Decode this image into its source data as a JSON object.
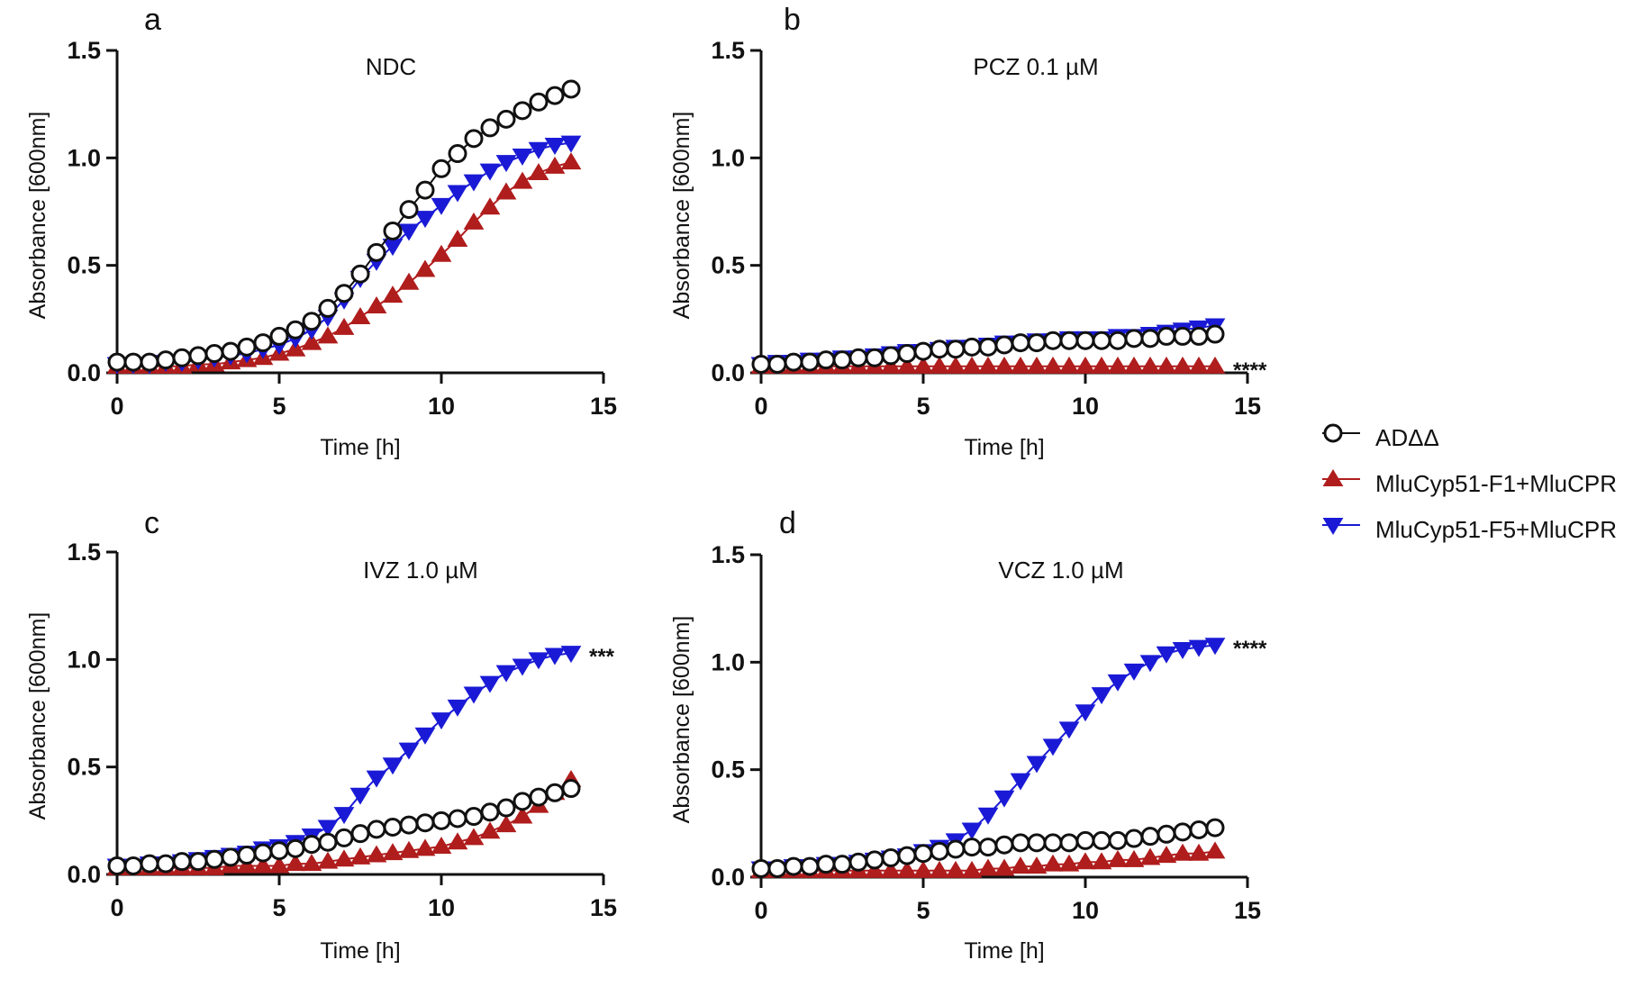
{
  "colors": {
    "addd": "#111111",
    "f1": "#b01d1d",
    "f5": "#1a1ad6",
    "axis": "#111111"
  },
  "legend": {
    "items": [
      {
        "series": "addd",
        "label": "ADΔΔ",
        "marker": "circle"
      },
      {
        "series": "f1",
        "label": "MluCyp51-F1+MluCPR",
        "marker": "triangle-up"
      },
      {
        "series": "f5",
        "label": "MluCyp51-F5+MluCPR",
        "marker": "triangle-down"
      }
    ]
  },
  "chart_data": [
    {
      "type": "line",
      "panel": "a",
      "title": "NDC",
      "xlabel": "Time [h]",
      "ylabel": "Absorbance [600nm]",
      "xlim": [
        0,
        15
      ],
      "ylim": [
        0,
        1.5
      ],
      "xticks": [
        0,
        5,
        10,
        15
      ],
      "xtick_labels": [
        "0",
        "5",
        "10",
        "15"
      ],
      "yticks": [
        0,
        0.5,
        1.0,
        1.5
      ],
      "ytick_labels": [
        "0.0",
        "0.5",
        "1.0",
        "1.5"
      ],
      "significance": "",
      "x": [
        0,
        0.5,
        1,
        1.5,
        2,
        2.5,
        3,
        3.5,
        4,
        4.5,
        5,
        5.5,
        6,
        6.5,
        7,
        7.5,
        8,
        8.5,
        9,
        9.5,
        10,
        10.5,
        11,
        11.5,
        12,
        12.5,
        13,
        13.5,
        14
      ],
      "series": [
        {
          "name": "ADΔΔ",
          "key": "addd",
          "values": [
            0.05,
            0.05,
            0.05,
            0.06,
            0.07,
            0.08,
            0.09,
            0.1,
            0.12,
            0.14,
            0.17,
            0.2,
            0.24,
            0.3,
            0.37,
            0.46,
            0.56,
            0.66,
            0.76,
            0.85,
            0.95,
            1.02,
            1.09,
            1.14,
            1.18,
            1.22,
            1.26,
            1.29,
            1.32
          ]
        },
        {
          "name": "MluCyp51-F1+MluCPR",
          "key": "f1",
          "values": [
            0.03,
            0.03,
            0.03,
            0.03,
            0.03,
            0.04,
            0.04,
            0.05,
            0.06,
            0.07,
            0.09,
            0.11,
            0.14,
            0.17,
            0.21,
            0.26,
            0.31,
            0.36,
            0.42,
            0.48,
            0.55,
            0.62,
            0.7,
            0.77,
            0.84,
            0.89,
            0.93,
            0.96,
            0.98
          ]
        },
        {
          "name": "MluCyp51-F5+MluCPR",
          "key": "f5",
          "values": [
            0.04,
            0.04,
            0.04,
            0.05,
            0.05,
            0.06,
            0.07,
            0.08,
            0.09,
            0.11,
            0.13,
            0.16,
            0.2,
            0.26,
            0.34,
            0.44,
            0.52,
            0.59,
            0.66,
            0.72,
            0.78,
            0.84,
            0.89,
            0.94,
            0.98,
            1.01,
            1.04,
            1.06,
            1.07
          ]
        }
      ]
    },
    {
      "type": "line",
      "panel": "b",
      "title": "PCZ 0.1 µM",
      "xlabel": "Time [h]",
      "ylabel": "Absorbance [600nm]",
      "xlim": [
        0,
        15
      ],
      "ylim": [
        0,
        1.5
      ],
      "xticks": [
        0,
        5,
        10,
        15
      ],
      "xtick_labels": [
        "0",
        "5",
        "10",
        "15"
      ],
      "yticks": [
        0,
        0.5,
        1.0,
        1.5
      ],
      "ytick_labels": [
        "0.0",
        "0.5",
        "1.0",
        "1.5"
      ],
      "significance": "****",
      "x": [
        0,
        0.5,
        1,
        1.5,
        2,
        2.5,
        3,
        3.5,
        4,
        4.5,
        5,
        5.5,
        6,
        6.5,
        7,
        7.5,
        8,
        8.5,
        9,
        9.5,
        10,
        10.5,
        11,
        11.5,
        12,
        12.5,
        13,
        13.5,
        14
      ],
      "series": [
        {
          "name": "ADΔΔ",
          "key": "addd",
          "values": [
            0.04,
            0.04,
            0.05,
            0.05,
            0.06,
            0.06,
            0.07,
            0.07,
            0.08,
            0.09,
            0.1,
            0.11,
            0.11,
            0.12,
            0.12,
            0.13,
            0.14,
            0.14,
            0.15,
            0.15,
            0.15,
            0.15,
            0.15,
            0.16,
            0.16,
            0.17,
            0.17,
            0.17,
            0.18
          ]
        },
        {
          "name": "MluCyp51-F1+MluCPR",
          "key": "f1",
          "values": [
            0.03,
            0.03,
            0.03,
            0.03,
            0.03,
            0.03,
            0.03,
            0.03,
            0.03,
            0.03,
            0.03,
            0.03,
            0.03,
            0.03,
            0.03,
            0.03,
            0.03,
            0.03,
            0.03,
            0.03,
            0.03,
            0.03,
            0.03,
            0.03,
            0.03,
            0.03,
            0.03,
            0.03,
            0.03
          ]
        },
        {
          "name": "MluCyp51-F5+MluCPR",
          "key": "f5",
          "values": [
            0.04,
            0.05,
            0.05,
            0.06,
            0.06,
            0.07,
            0.07,
            0.08,
            0.09,
            0.1,
            0.1,
            0.11,
            0.12,
            0.12,
            0.13,
            0.14,
            0.14,
            0.15,
            0.15,
            0.16,
            0.16,
            0.16,
            0.17,
            0.17,
            0.18,
            0.19,
            0.2,
            0.21,
            0.22
          ]
        }
      ]
    },
    {
      "type": "line",
      "panel": "c",
      "title": "IVZ 1.0 µM",
      "xlabel": "Time [h]",
      "ylabel": "Absorbance [600nm]",
      "xlim": [
        0,
        15
      ],
      "ylim": [
        0,
        1.5
      ],
      "xticks": [
        0,
        5,
        10,
        15
      ],
      "xtick_labels": [
        "0",
        "5",
        "10",
        "15"
      ],
      "yticks": [
        0,
        0.5,
        1.0,
        1.5
      ],
      "ytick_labels": [
        "0.0",
        "0.5",
        "1.0",
        "1.5"
      ],
      "significance": "***",
      "x": [
        0,
        0.5,
        1,
        1.5,
        2,
        2.5,
        3,
        3.5,
        4,
        4.5,
        5,
        5.5,
        6,
        6.5,
        7,
        7.5,
        8,
        8.5,
        9,
        9.5,
        10,
        10.5,
        11,
        11.5,
        12,
        12.5,
        13,
        13.5,
        14
      ],
      "series": [
        {
          "name": "ADΔΔ",
          "key": "addd",
          "values": [
            0.04,
            0.04,
            0.05,
            0.05,
            0.06,
            0.06,
            0.07,
            0.08,
            0.09,
            0.1,
            0.11,
            0.12,
            0.14,
            0.15,
            0.17,
            0.19,
            0.21,
            0.22,
            0.23,
            0.24,
            0.25,
            0.26,
            0.27,
            0.29,
            0.31,
            0.34,
            0.36,
            0.38,
            0.4
          ]
        },
        {
          "name": "MluCyp51-F1+MluCPR",
          "key": "f1",
          "values": [
            0.03,
            0.03,
            0.03,
            0.03,
            0.03,
            0.03,
            0.03,
            0.04,
            0.04,
            0.04,
            0.04,
            0.05,
            0.05,
            0.06,
            0.07,
            0.08,
            0.09,
            0.1,
            0.11,
            0.12,
            0.13,
            0.15,
            0.17,
            0.2,
            0.23,
            0.27,
            0.32,
            0.38,
            0.44
          ]
        },
        {
          "name": "MluCyp51-F5+MluCPR",
          "key": "f5",
          "values": [
            0.04,
            0.04,
            0.05,
            0.05,
            0.06,
            0.07,
            0.08,
            0.09,
            0.1,
            0.12,
            0.13,
            0.15,
            0.18,
            0.22,
            0.28,
            0.37,
            0.45,
            0.51,
            0.58,
            0.65,
            0.72,
            0.78,
            0.84,
            0.89,
            0.94,
            0.97,
            1.0,
            1.02,
            1.03
          ]
        }
      ]
    },
    {
      "type": "line",
      "panel": "d",
      "title": "VCZ 1.0 µM",
      "xlabel": "Time [h]",
      "ylabel": "Absorbance [600nm]",
      "xlim": [
        0,
        15
      ],
      "ylim": [
        0,
        1.5
      ],
      "xticks": [
        0,
        5,
        10,
        15
      ],
      "xtick_labels": [
        "0",
        "5",
        "10",
        "15"
      ],
      "yticks": [
        0,
        0.5,
        1.0,
        1.5
      ],
      "ytick_labels": [
        "0.0",
        "0.5",
        "1.0",
        "1.5"
      ],
      "significance": "****",
      "x": [
        0,
        0.5,
        1,
        1.5,
        2,
        2.5,
        3,
        3.5,
        4,
        4.5,
        5,
        5.5,
        6,
        6.5,
        7,
        7.5,
        8,
        8.5,
        9,
        9.5,
        10,
        10.5,
        11,
        11.5,
        12,
        12.5,
        13,
        13.5,
        14
      ],
      "series": [
        {
          "name": "ADΔΔ",
          "key": "addd",
          "values": [
            0.04,
            0.04,
            0.05,
            0.05,
            0.06,
            0.06,
            0.07,
            0.08,
            0.09,
            0.1,
            0.11,
            0.12,
            0.13,
            0.14,
            0.14,
            0.15,
            0.16,
            0.16,
            0.16,
            0.16,
            0.17,
            0.17,
            0.17,
            0.18,
            0.19,
            0.2,
            0.21,
            0.22,
            0.23
          ]
        },
        {
          "name": "MluCyp51-F1+MluCPR",
          "key": "f1",
          "values": [
            0.03,
            0.03,
            0.03,
            0.03,
            0.03,
            0.03,
            0.03,
            0.03,
            0.03,
            0.03,
            0.03,
            0.03,
            0.03,
            0.03,
            0.04,
            0.04,
            0.05,
            0.05,
            0.06,
            0.06,
            0.07,
            0.07,
            0.08,
            0.08,
            0.09,
            0.1,
            0.11,
            0.11,
            0.12
          ]
        },
        {
          "name": "MluCyp51-F5+MluCPR",
          "key": "f5",
          "values": [
            0.04,
            0.04,
            0.05,
            0.05,
            0.06,
            0.06,
            0.07,
            0.08,
            0.09,
            0.1,
            0.12,
            0.14,
            0.17,
            0.22,
            0.29,
            0.37,
            0.45,
            0.53,
            0.61,
            0.69,
            0.77,
            0.85,
            0.91,
            0.96,
            1.0,
            1.04,
            1.06,
            1.07,
            1.08
          ]
        }
      ]
    }
  ]
}
